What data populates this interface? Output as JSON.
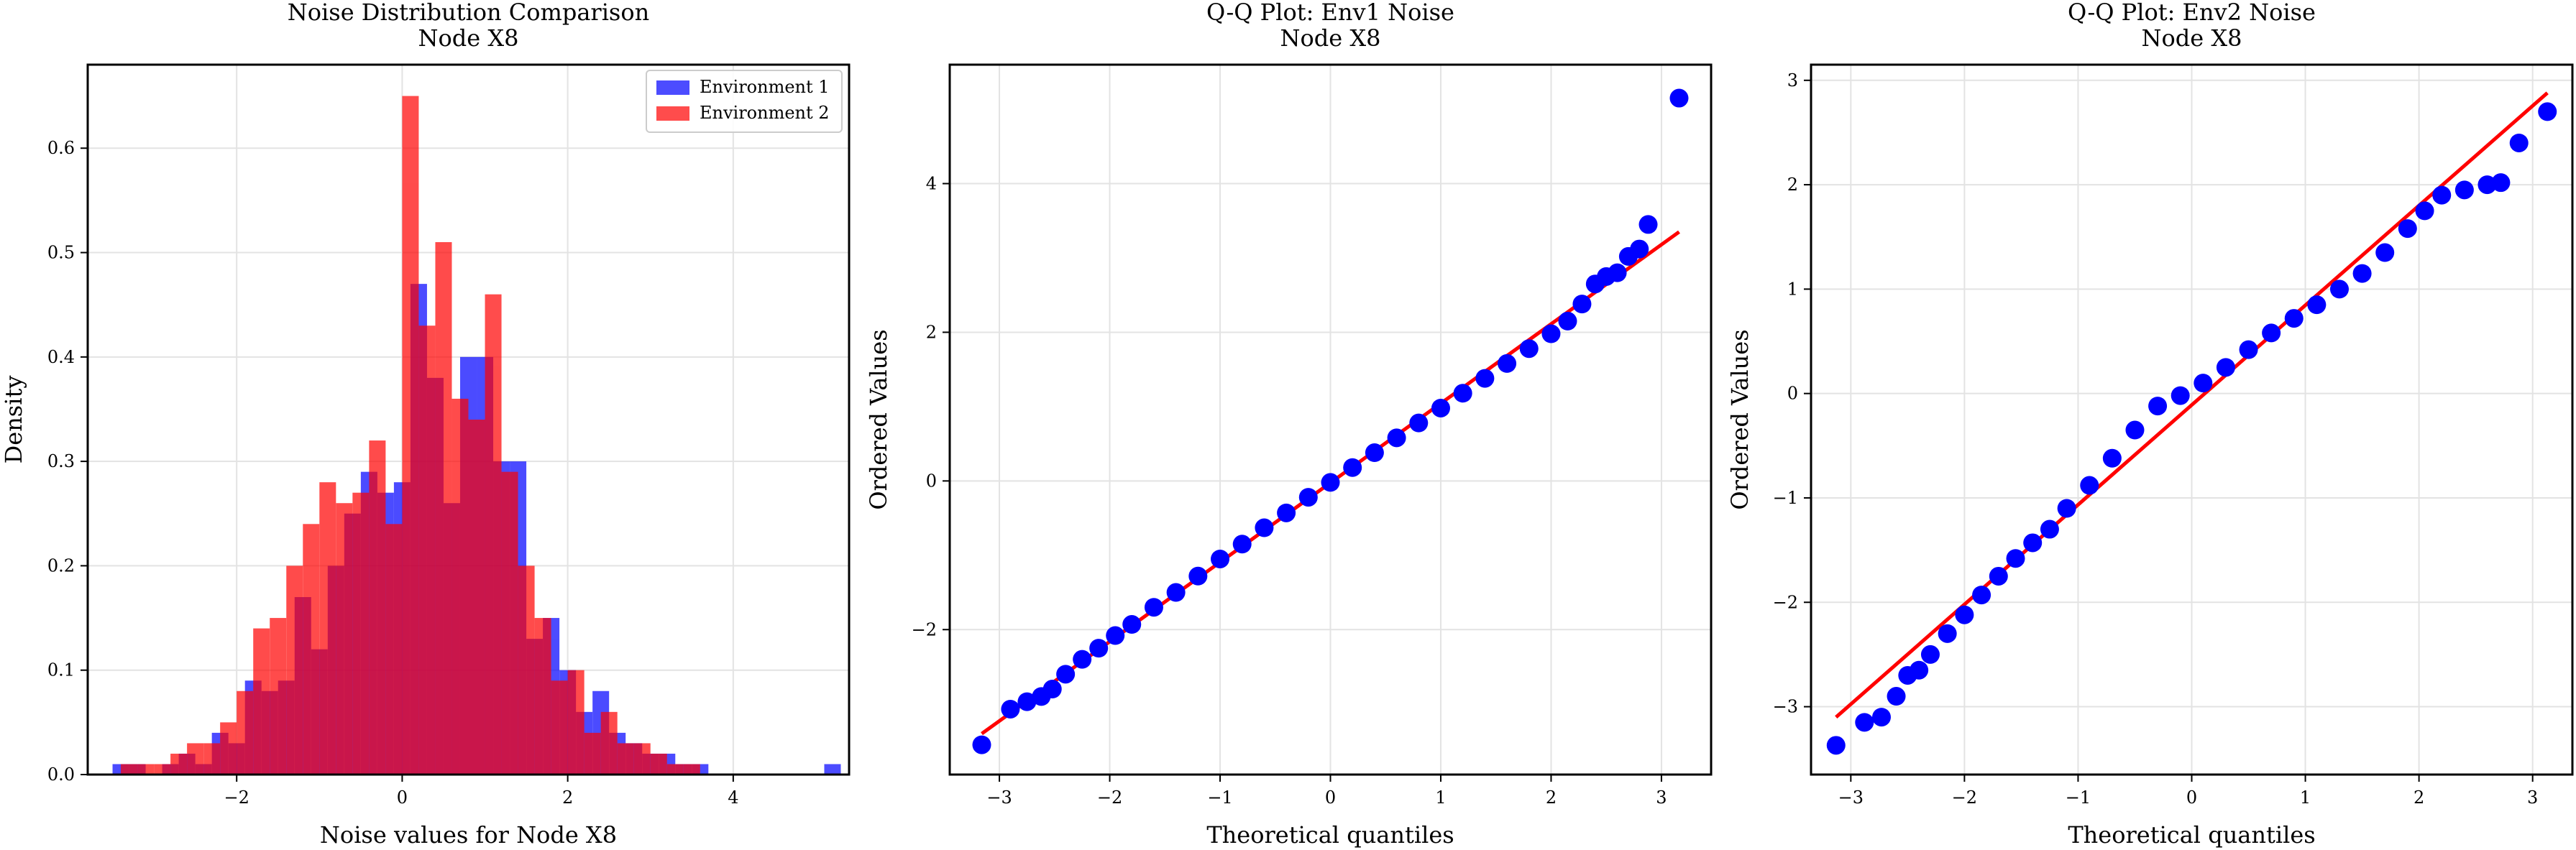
{
  "chart_data": [
    {
      "type": "histogram",
      "title": [
        "Noise Distribution Comparison",
        "Node X8"
      ],
      "xlabel": "Noise values for Node X8",
      "ylabel": "Density",
      "xlim": [
        -3.8,
        5.4
      ],
      "ylim": [
        0,
        0.68
      ],
      "xticks": [
        -2,
        0,
        2,
        4
      ],
      "yticks": [
        0.0,
        0.1,
        0.2,
        0.3,
        0.4,
        0.5,
        0.6
      ],
      "grid": true,
      "legend_position": "top-right",
      "bin_width": 0.2,
      "series": [
        {
          "name": "Environment 1",
          "color": "#0000ff",
          "opacity": 0.7,
          "bin_start": -3.5,
          "values": [
            0.01,
            0.01,
            0.0,
            0.01,
            0.02,
            0.01,
            0.04,
            0.03,
            0.09,
            0.08,
            0.09,
            0.17,
            0.12,
            0.2,
            0.25,
            0.29,
            0.27,
            0.28,
            0.47,
            0.38,
            0.26,
            0.4,
            0.4,
            0.3,
            0.3,
            0.13,
            0.15,
            0.1,
            0.06,
            0.08,
            0.04,
            0.03,
            0.02,
            0.02,
            0.01,
            0.01,
            0.0,
            0.0,
            0.0,
            0.0,
            0.0,
            0.0,
            0.0,
            0.01
          ]
        },
        {
          "name": "Environment 2",
          "color": "#ff0000",
          "opacity": 0.7,
          "bin_start": -3.4,
          "values": [
            0.01,
            0.01,
            0.01,
            0.02,
            0.03,
            0.03,
            0.05,
            0.08,
            0.14,
            0.15,
            0.2,
            0.24,
            0.28,
            0.26,
            0.27,
            0.32,
            0.24,
            0.65,
            0.43,
            0.51,
            0.36,
            0.34,
            0.46,
            0.29,
            0.2,
            0.15,
            0.09,
            0.1,
            0.04,
            0.06,
            0.03,
            0.03,
            0.02,
            0.01,
            0.01
          ]
        }
      ]
    },
    {
      "type": "scatter",
      "title": [
        "Q-Q Plot: Env1 Noise",
        "Node X8"
      ],
      "xlabel": "Theoretical quantiles",
      "ylabel": "Ordered Values",
      "xlim": [
        -3.45,
        3.45
      ],
      "ylim": [
        -3.95,
        5.6
      ],
      "xticks": [
        -3,
        -2,
        -1,
        0,
        1,
        2,
        3
      ],
      "yticks": [
        -2,
        0,
        2,
        4
      ],
      "grid": true,
      "points": [
        [
          -3.16,
          -3.55
        ],
        [
          -2.9,
          -3.07
        ],
        [
          -2.75,
          -2.97
        ],
        [
          -2.62,
          -2.9
        ],
        [
          -2.52,
          -2.8
        ],
        [
          -2.4,
          -2.6
        ],
        [
          -2.25,
          -2.4
        ],
        [
          -2.1,
          -2.25
        ],
        [
          -1.95,
          -2.08
        ],
        [
          -1.8,
          -1.93
        ],
        [
          -1.6,
          -1.7
        ],
        [
          -1.4,
          -1.5
        ],
        [
          -1.2,
          -1.28
        ],
        [
          -1.0,
          -1.05
        ],
        [
          -0.8,
          -0.85
        ],
        [
          -0.6,
          -0.63
        ],
        [
          -0.4,
          -0.43
        ],
        [
          -0.2,
          -0.22
        ],
        [
          0.0,
          -0.02
        ],
        [
          0.2,
          0.18
        ],
        [
          0.4,
          0.38
        ],
        [
          0.6,
          0.58
        ],
        [
          0.8,
          0.78
        ],
        [
          1.0,
          0.98
        ],
        [
          1.2,
          1.18
        ],
        [
          1.4,
          1.38
        ],
        [
          1.6,
          1.58
        ],
        [
          1.8,
          1.78
        ],
        [
          2.0,
          1.98
        ],
        [
          2.15,
          2.15
        ],
        [
          2.28,
          2.38
        ],
        [
          2.4,
          2.65
        ],
        [
          2.5,
          2.75
        ],
        [
          2.6,
          2.8
        ],
        [
          2.7,
          3.02
        ],
        [
          2.8,
          3.12
        ],
        [
          2.88,
          3.45
        ],
        [
          3.16,
          5.15
        ]
      ],
      "reference_line": {
        "color": "#ff0000",
        "x": [
          -3.16,
          3.16
        ],
        "y": [
          -3.4,
          3.35
        ]
      },
      "point_color": "#0000ff"
    },
    {
      "type": "scatter",
      "title": [
        "Q-Q Plot: Env2 Noise",
        "Node X8"
      ],
      "xlabel": "Theoretical quantiles",
      "ylabel": "Ordered Values",
      "xlim": [
        -3.35,
        3.35
      ],
      "ylim": [
        -3.65,
        3.15
      ],
      "xticks": [
        -3,
        -2,
        -1,
        0,
        1,
        2,
        3
      ],
      "yticks": [
        -3,
        -2,
        -1,
        0,
        1,
        2,
        3
      ],
      "grid": true,
      "points": [
        [
          -3.13,
          -3.37
        ],
        [
          -2.88,
          -3.15
        ],
        [
          -2.73,
          -3.1
        ],
        [
          -2.6,
          -2.9
        ],
        [
          -2.5,
          -2.7
        ],
        [
          -2.4,
          -2.65
        ],
        [
          -2.3,
          -2.5
        ],
        [
          -2.15,
          -2.3
        ],
        [
          -2.0,
          -2.12
        ],
        [
          -1.85,
          -1.93
        ],
        [
          -1.7,
          -1.75
        ],
        [
          -1.55,
          -1.58
        ],
        [
          -1.4,
          -1.43
        ],
        [
          -1.25,
          -1.3
        ],
        [
          -1.1,
          -1.1
        ],
        [
          -0.9,
          -0.88
        ],
        [
          -0.7,
          -0.62
        ],
        [
          -0.5,
          -0.35
        ],
        [
          -0.3,
          -0.12
        ],
        [
          -0.1,
          -0.02
        ],
        [
          0.1,
          0.1
        ],
        [
          0.3,
          0.25
        ],
        [
          0.5,
          0.42
        ],
        [
          0.7,
          0.58
        ],
        [
          0.9,
          0.72
        ],
        [
          1.1,
          0.85
        ],
        [
          1.3,
          1.0
        ],
        [
          1.5,
          1.15
        ],
        [
          1.7,
          1.35
        ],
        [
          1.9,
          1.58
        ],
        [
          2.05,
          1.75
        ],
        [
          2.2,
          1.9
        ],
        [
          2.4,
          1.95
        ],
        [
          2.6,
          2.0
        ],
        [
          2.72,
          2.02
        ],
        [
          2.88,
          2.4
        ],
        [
          3.13,
          2.7
        ]
      ],
      "reference_line": {
        "color": "#ff0000",
        "x": [
          -3.13,
          3.13
        ],
        "y": [
          -3.1,
          2.88
        ]
      },
      "point_color": "#0000ff"
    }
  ]
}
